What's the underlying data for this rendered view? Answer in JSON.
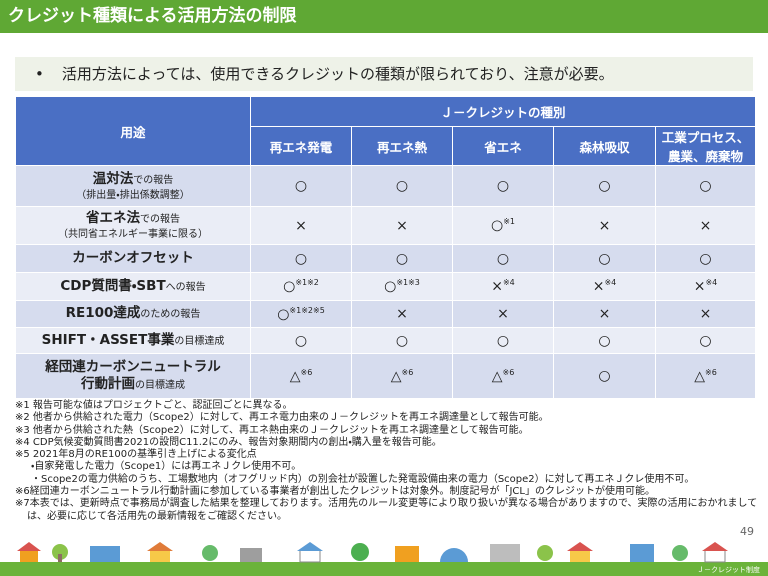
{
  "header": {
    "title": "クレジット種類による活用方法の制限"
  },
  "bullet": "活用方法によっては、使用できるクレジットの種類が限られており、注意が必要。",
  "table": {
    "header": {
      "use": "用途",
      "group": "Ｊ－クレジットの種別",
      "columns": [
        "再エネ発電",
        "再エネ熱",
        "省エネ",
        "森林吸収",
        "工業プロセス、農業、廃棄物"
      ]
    },
    "rows": [
      {
        "label_main": "温対法",
        "label_suffix": "での報告",
        "label_sub": "（排出量・排出係数調整）",
        "cells": [
          {
            "mark": "○"
          },
          {
            "mark": "○"
          },
          {
            "mark": "○"
          },
          {
            "mark": "○"
          },
          {
            "mark": "○"
          }
        ]
      },
      {
        "label_main": "省エネ法",
        "label_suffix": "での報告",
        "label_sub": "（共同省エネルギー事業に限る）",
        "cells": [
          {
            "mark": "×"
          },
          {
            "mark": "×"
          },
          {
            "mark": "○",
            "note": "※1"
          },
          {
            "mark": "×"
          },
          {
            "mark": "×"
          }
        ]
      },
      {
        "label_main": "カーボンオフセット",
        "cells": [
          {
            "mark": "○"
          },
          {
            "mark": "○"
          },
          {
            "mark": "○"
          },
          {
            "mark": "○"
          },
          {
            "mark": "○"
          }
        ]
      },
      {
        "label_main": "CDP質問書・SBT",
        "label_suffix": "への報告",
        "cells": [
          {
            "mark": "○",
            "note": "※1※2"
          },
          {
            "mark": "○",
            "note": "※1※3"
          },
          {
            "mark": "×",
            "note": "※4"
          },
          {
            "mark": "×",
            "note": "※4"
          },
          {
            "mark": "×",
            "note": "※4"
          }
        ]
      },
      {
        "label_main": "RE100達成",
        "label_suffix": "のための報告",
        "cells": [
          {
            "mark": "○",
            "note": "※1※2※5"
          },
          {
            "mark": "×"
          },
          {
            "mark": "×"
          },
          {
            "mark": "×"
          },
          {
            "mark": "×"
          }
        ]
      },
      {
        "label_main": "SHIFT・ASSET事業",
        "label_suffix": "の目標達成",
        "cells": [
          {
            "mark": "○"
          },
          {
            "mark": "○"
          },
          {
            "mark": "○"
          },
          {
            "mark": "○"
          },
          {
            "mark": "○"
          }
        ]
      },
      {
        "label_main": "経団連カーボンニュートラル",
        "label_main_2": "行動計画",
        "label_suffix": "の目標達成",
        "cells": [
          {
            "mark": "△",
            "note": "※6"
          },
          {
            "mark": "△",
            "note": "※6"
          },
          {
            "mark": "△",
            "note": "※6"
          },
          {
            "mark": "○"
          },
          {
            "mark": "△",
            "note": "※6"
          }
        ]
      }
    ]
  },
  "notes": [
    "※1 報告可能な値はプロジェクトごと、認証回ごとに異なる。",
    "※2 他者から供給された電力（Scope2）に対して、再エネ電力由来のＪ－クレジットを再エネ調達量として報告可能。",
    "※3 他者から供給された熱（Scope2）に対して、再エネ熱由来のＪ－クレジットを再エネ調達量として報告可能。",
    "※4 CDP気候変動質問書2021の設問C11.2にのみ、報告対象期間内の創出・購入量を報告可能。",
    "※5 2021年8月のRE100の基準引き上げによる変化点",
    "・自家発電した電力（Scope1）には再エネＪクレ使用不可。",
    "・Scope2の電力供給のうち、工場敷地内（オフグリッド内）の別会社が設置した発電設備由来の電力（Scope2）に対して再エネＪクレ使用不可。",
    "※6経団連カーボンニュートラル行動計画に参加している事業者が創出したクレジットは対象外。制度記号が「JCL」のクレジットが使用可能。",
    "※7本表では、更新時点で事務局が調査した結果を整理しております。活用先のルール変更等により取り扱いが異なる場合がありますので、実際の活用におかれましては、必要に応じて各活用先の最新情報をご確認ください。"
  ],
  "page_number": "49",
  "footer": "Ｊ－クレジット制度"
}
